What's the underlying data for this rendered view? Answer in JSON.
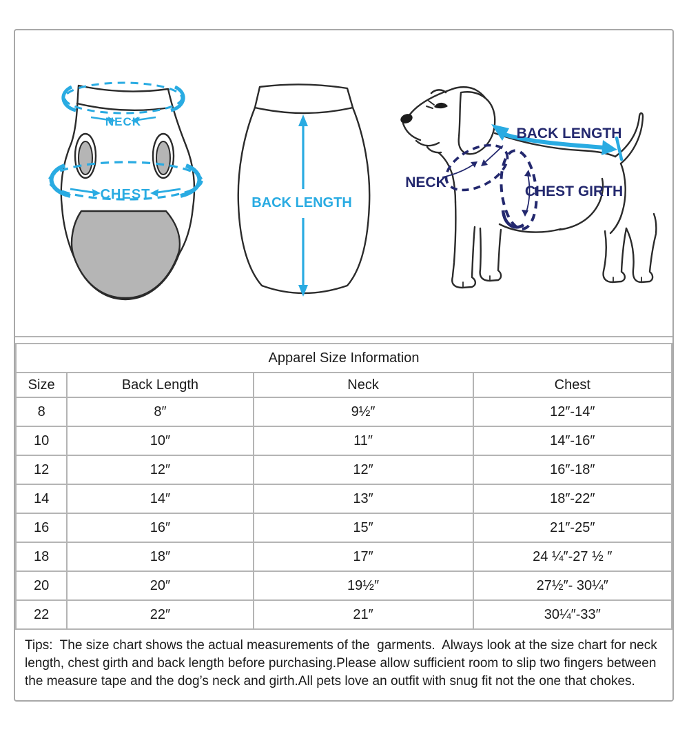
{
  "diagrams": {
    "front_garment": {
      "neck": "NECK",
      "chest": "CHEST"
    },
    "back_garment": {
      "back_length": "BACK LENGTH"
    },
    "dog": {
      "back_length": "BACK LENGTH",
      "neck": "NECK",
      "chest_girth": "CHEST GIRTH"
    }
  },
  "table": {
    "title": "Apparel Size Information",
    "columns": [
      "Size",
      "Back Length",
      "Neck",
      "Chest"
    ],
    "rows": [
      [
        "8",
        "8″",
        "9½″",
        "12″-14″"
      ],
      [
        "10",
        "10″",
        "11″",
        "14″-16″"
      ],
      [
        "12",
        "12″",
        "12″",
        "16″-18″"
      ],
      [
        "14",
        "14″",
        "13″",
        "18″-22″"
      ],
      [
        "16",
        "16″",
        "15″",
        "21″-25″"
      ],
      [
        "18",
        "18″",
        "17″",
        "24 ¼″-27 ½ ″"
      ],
      [
        "20",
        "20″",
        "19½″",
        "27½″- 30¼″"
      ],
      [
        "22",
        "22″",
        "21″",
        "30¼″-33″"
      ]
    ]
  },
  "tips": {
    "label": "Tips:",
    "text": "  The size chart shows the actual measurements of the  garments.  Always look at the size chart for neck length, chest girth and back length before purchasing.Please allow sufficient room to slip two fingers between the measure tape and the dog’s neck and girth.All pets love an outfit with snug fit not the one that chokes."
  },
  "colors": {
    "accent_blue": "#29ABE2",
    "label_navy": "#23286E",
    "garment_gray": "#B5B5B5",
    "border_gray": "#B4B4B4"
  }
}
